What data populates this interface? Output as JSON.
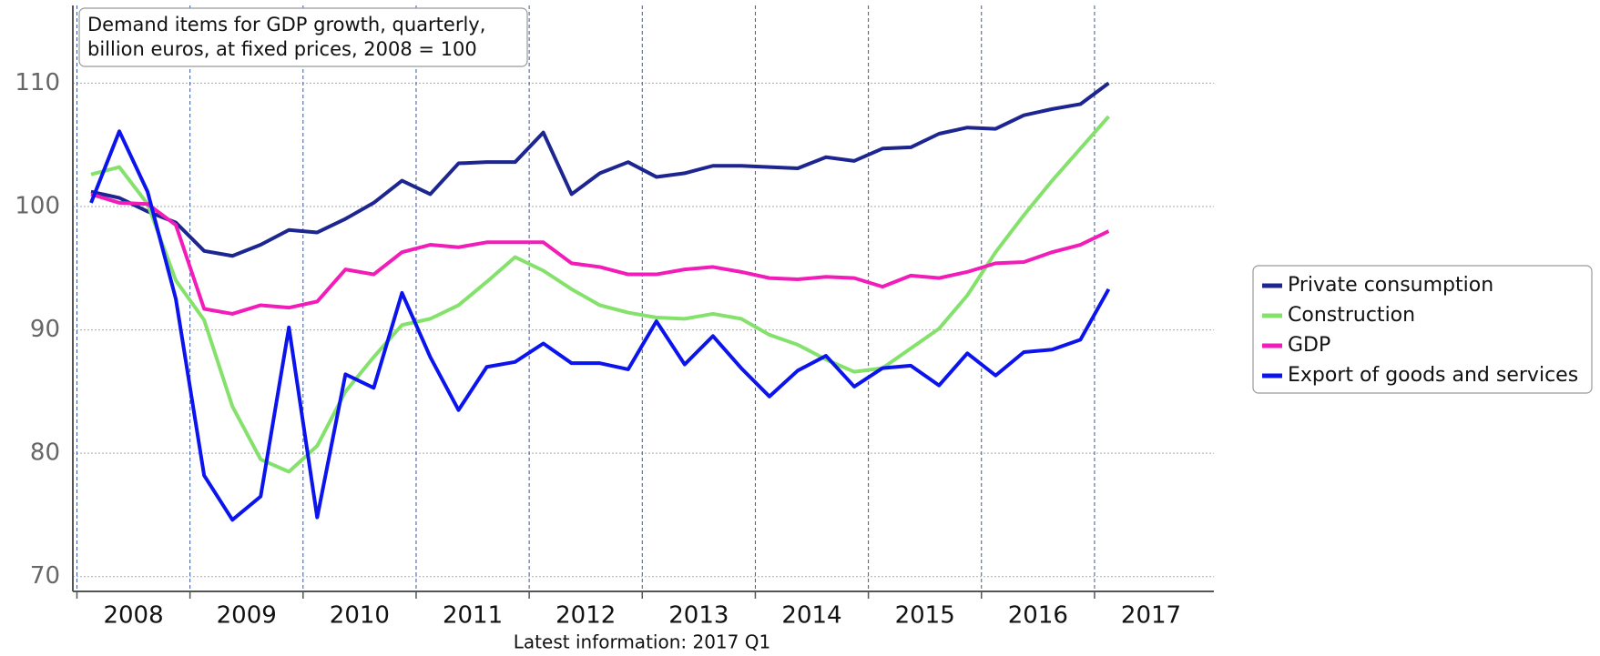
{
  "chart_data": {
    "type": "line",
    "title": [
      "Demand items for GDP growth, quarterly,",
      "billion euros, at fixed prices, 2008 = 100"
    ],
    "x_label": "Latest information: 2017 Q1",
    "categories": [
      "2008",
      null,
      null,
      null,
      "2009",
      null,
      null,
      null,
      "2010",
      null,
      null,
      null,
      "2011",
      null,
      null,
      null,
      "2012",
      null,
      null,
      null,
      "2013",
      null,
      null,
      null,
      "2014",
      null,
      null,
      null,
      "2015",
      null,
      null,
      null,
      "2016",
      null,
      null,
      null,
      "2017"
    ],
    "series": [
      {
        "name": "Private consumption",
        "color": "#1c2590",
        "values": [
          101.2,
          100.7,
          99.6,
          98.7,
          96.4,
          96.0,
          96.9,
          98.1,
          97.9,
          99.0,
          100.3,
          102.1,
          101.0,
          103.5,
          103.6,
          103.6,
          106.0,
          101.0,
          102.7,
          103.6,
          102.4,
          102.7,
          103.3,
          103.3,
          103.2,
          103.1,
          104.0,
          103.7,
          104.7,
          104.8,
          105.9,
          106.4,
          106.3,
          107.4,
          107.9,
          108.3,
          110.0
        ]
      },
      {
        "name": "Construction",
        "color": "#84e26c",
        "values": [
          102.6,
          103.2,
          100.2,
          94.0,
          90.8,
          83.8,
          79.5,
          78.5,
          80.6,
          85.0,
          87.8,
          90.4,
          90.9,
          92.0,
          93.9,
          95.9,
          94.8,
          93.3,
          92.0,
          91.4,
          91.0,
          90.9,
          91.3,
          90.9,
          89.6,
          88.8,
          87.6,
          86.6,
          86.9,
          88.5,
          90.1,
          92.8,
          96.3,
          99.3,
          102.1,
          104.7,
          107.3
        ]
      },
      {
        "name": "GDP",
        "color": "#f21cb9",
        "values": [
          101.0,
          100.3,
          100.2,
          98.5,
          91.7,
          91.3,
          92.0,
          91.8,
          92.3,
          94.9,
          94.5,
          96.3,
          96.9,
          96.7,
          97.1,
          97.1,
          97.1,
          95.4,
          95.1,
          94.5,
          94.5,
          94.9,
          95.1,
          94.7,
          94.2,
          94.1,
          94.3,
          94.2,
          93.5,
          94.4,
          94.2,
          94.7,
          95.4,
          95.5,
          96.3,
          96.9,
          98.0
        ]
      },
      {
        "name": "Export of goods and services",
        "color": "#0c14ee",
        "values": [
          100.3,
          106.1,
          101.2,
          92.5,
          78.2,
          74.6,
          76.5,
          90.2,
          74.8,
          86.4,
          85.3,
          93.0,
          87.8,
          83.5,
          87.0,
          87.4,
          88.9,
          87.3,
          87.3,
          86.8,
          90.7,
          87.2,
          89.5,
          86.9,
          84.6,
          86.7,
          87.9,
          85.4,
          86.9,
          87.1,
          85.5,
          88.1,
          86.3,
          88.2,
          88.4,
          89.2,
          93.3
        ]
      }
    ],
    "ylim": [
      68.8,
      116.3
    ],
    "yticks": [
      70,
      80,
      90,
      100,
      110
    ],
    "grid": true,
    "legend": "right"
  }
}
